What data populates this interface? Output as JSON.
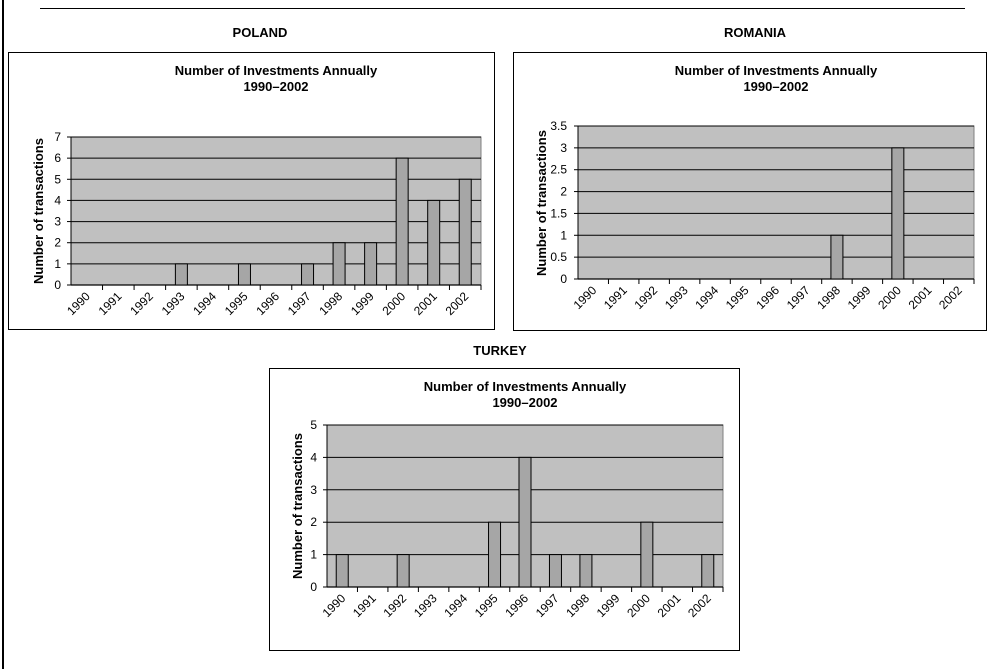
{
  "charts": [
    {
      "country": "POLAND",
      "chart_data": {
        "type": "bar",
        "title": "Number of Investments Annually",
        "subtitle": "1990–2002",
        "xlabel": "",
        "ylabel": "Number of transactions",
        "categories": [
          "1990",
          "1991",
          "1992",
          "1993",
          "1994",
          "1995",
          "1996",
          "1997",
          "1998",
          "1999",
          "2000",
          "2001",
          "2002"
        ],
        "values": [
          0,
          0,
          0,
          1,
          0,
          1,
          0,
          1,
          2,
          2,
          6,
          4,
          5
        ],
        "ylim": [
          0,
          7
        ],
        "yticks": [
          "0",
          "1",
          "2",
          "3",
          "4",
          "5",
          "6",
          "7"
        ],
        "ytick_values": [
          0,
          1,
          2,
          3,
          4,
          5,
          6,
          7
        ],
        "grid": true,
        "plot_color": "#c0c0c0",
        "bar_color": "#a6a6a6"
      }
    },
    {
      "country": "ROMANIA",
      "chart_data": {
        "type": "bar",
        "title": "Number of Investments Annually",
        "subtitle": "1990–2002",
        "xlabel": "",
        "ylabel": "Number of transactions",
        "categories": [
          "1990",
          "1991",
          "1992",
          "1993",
          "1994",
          "1995",
          "1996",
          "1997",
          "1998",
          "1999",
          "2000",
          "2001",
          "2002"
        ],
        "values": [
          0,
          0,
          0,
          0,
          0,
          0,
          0,
          0,
          1,
          0,
          3,
          0,
          0
        ],
        "ylim": [
          0,
          3.5
        ],
        "yticks": [
          "0",
          "0.5",
          "1",
          "1.5",
          "2",
          "2.5",
          "3",
          "3.5"
        ],
        "ytick_values": [
          0,
          0.5,
          1,
          1.5,
          2,
          2.5,
          3,
          3.5
        ],
        "grid": true,
        "plot_color": "#c0c0c0",
        "bar_color": "#a6a6a6"
      }
    },
    {
      "country": "TURKEY",
      "chart_data": {
        "type": "bar",
        "title": "Number of Investments Annually",
        "subtitle": "1990–2002",
        "xlabel": "",
        "ylabel": "Number of transactions",
        "categories": [
          "1990",
          "1991",
          "1992",
          "1993",
          "1994",
          "1995",
          "1996",
          "1997",
          "1998",
          "1999",
          "2000",
          "2001",
          "2002"
        ],
        "values": [
          1,
          0,
          1,
          0,
          0,
          2,
          4,
          1,
          1,
          0,
          2,
          0,
          1
        ],
        "ylim": [
          0,
          5
        ],
        "yticks": [
          "0",
          "1",
          "2",
          "3",
          "4",
          "5"
        ],
        "ytick_values": [
          0,
          1,
          2,
          3,
          4,
          5
        ],
        "grid": true,
        "plot_color": "#c0c0c0",
        "bar_color": "#a6a6a6"
      }
    }
  ]
}
